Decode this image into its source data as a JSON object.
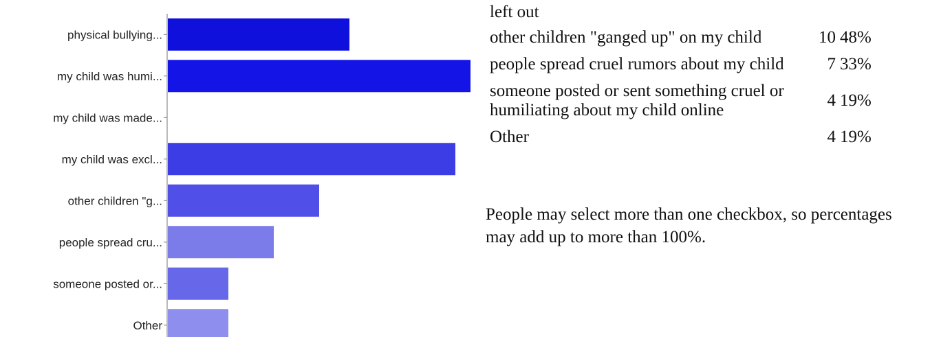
{
  "chart_data": {
    "type": "bar",
    "orientation": "horizontal",
    "categories": [
      "physical bullying...",
      "my child was humi...",
      "my child was made...",
      "my child was excl...",
      "other children \"g...",
      "people spread cru...",
      "someone posted or...",
      "Other"
    ],
    "values": [
      12,
      20,
      0,
      19,
      10,
      7,
      4,
      4
    ],
    "colors": [
      "#1010dd",
      "#1414e6",
      "#2f2fe6",
      "#3d3de6",
      "#5050e8",
      "#7b7be9",
      "#6767e9",
      "#8e8eef"
    ],
    "xlim": [
      0,
      20
    ],
    "grid": false
  },
  "summary": {
    "rows": [
      {
        "response": "left out",
        "count": "",
        "percent": ""
      },
      {
        "response": "other children \"ganged up\" on my child",
        "count": "10",
        "percent": "48%"
      },
      {
        "response": "people spread cruel rumors about my child",
        "count": "7",
        "percent": "33%"
      },
      {
        "response": "someone posted or sent something cruel or humiliating about my child online",
        "count": "4",
        "percent": "19%"
      },
      {
        "response": "Other",
        "count": "4",
        "percent": "19%"
      }
    ],
    "note": "People may select more than one checkbox, so percentages may add up to more than 100%."
  }
}
